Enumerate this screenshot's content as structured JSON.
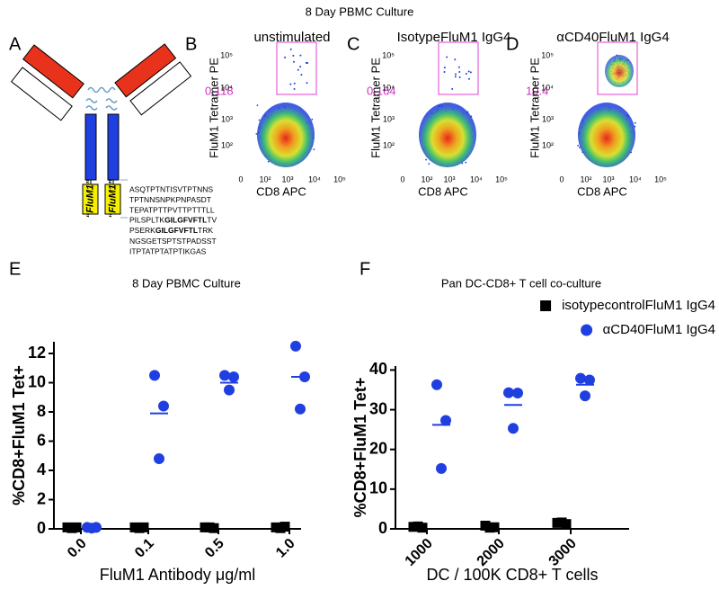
{
  "figure_title": "8 Day PBMC Culture",
  "panel_a": {
    "letter": "A",
    "epitope_labels": [
      "“FluM1”",
      "“FluM1”"
    ],
    "sequence": [
      {
        "text": "ASQTPTNTISVTPTNNS"
      },
      {
        "text": "TPTNNSNPKPNPASDT"
      },
      {
        "text": "TEPATPTTPVTTPTTTLL"
      },
      {
        "pre": "PILSPLTK",
        "bold": "GILGFVFTL",
        "post": "TV"
      },
      {
        "pre": "PSERK",
        "bold": "GILGFVFTL",
        "post": "TRK"
      },
      {
        "text": "NGSGETSPTSTPADSST"
      },
      {
        "text": "ITPTATPTATPTIKGAS"
      }
    ]
  },
  "flow_axes": {
    "x_label": "CD8 APC",
    "y_label": "FluM1 Tetramer PE",
    "x_ticks": [
      "0",
      "10²",
      "10³",
      "10⁴",
      "10⁵"
    ],
    "y_ticks": [
      "10⁵",
      "10⁴",
      "10³",
      "10²"
    ]
  },
  "flow_panels": [
    {
      "letter": "B",
      "title": "unstimulated",
      "gate": "0.118"
    },
    {
      "letter": "C",
      "title": "IsotypeFluM1 IgG4",
      "gate": "0.164"
    },
    {
      "letter": "D",
      "title": "αCD40FluM1 IgG4",
      "gate": "10.4"
    }
  ],
  "chart_data": [
    {
      "type": "dot",
      "letter": "E",
      "title": "8 Day PBMC Culture",
      "x_label": "FluM1 Antibody μg/ml",
      "y_label": "%CD8+FluM1 Tet+",
      "ylim": [
        0,
        12.8
      ],
      "yticks": [
        0,
        2,
        4,
        6,
        8,
        10,
        12
      ],
      "categories": [
        "0.0",
        "0.1",
        "0.5",
        "1.0"
      ],
      "series": [
        {
          "color": "#000000",
          "marker": "square",
          "values": [
            [
              0.1,
              0.1,
              0.05
            ],
            [
              0.1,
              0.1,
              0.05
            ],
            [
              0.1,
              0.05,
              0.1
            ],
            [
              0.1,
              0.15,
              0.05
            ]
          ],
          "means": [
            0.08,
            0.08,
            0.08,
            0.1
          ]
        },
        {
          "color": "#1f3fe0",
          "marker": "circle",
          "values": [
            [
              0.1,
              0.1,
              0.05
            ],
            [
              10.5,
              8.4,
              4.8
            ],
            [
              10.5,
              10.4,
              9.5
            ],
            [
              12.5,
              10.4,
              8.2
            ]
          ],
          "means": [
            0.08,
            7.9,
            10,
            10.4
          ]
        }
      ]
    },
    {
      "type": "dot",
      "letter": "F",
      "title": "Pan DC-CD8+ T cell co-culture",
      "x_label": "DC / 100K CD8+ T cells",
      "y_label": "%CD8+FluM1 Tet+",
      "ylim": [
        0,
        41
      ],
      "yticks": [
        0,
        10,
        20,
        30,
        40
      ],
      "categories": [
        "1000",
        "2000",
        "3000"
      ],
      "legend": "top-right",
      "series": [
        {
          "name": "isotypecontrolFluM1 IgG4",
          "color": "#000000",
          "marker": "square",
          "values": [
            [
              0.5,
              0.3,
              0.6
            ],
            [
              0.8,
              0.4,
              0.3
            ],
            [
              1.5,
              1.2,
              1.6
            ]
          ],
          "means": [
            0.5,
            0.5,
            1.4
          ]
        },
        {
          "name": "αCD40FluM1 IgG4",
          "color": "#1f3fe0",
          "marker": "circle",
          "values": [
            [
              36.3,
              27.3,
              15.2
            ],
            [
              34.3,
              34.2,
              25.3
            ],
            [
              37.9,
              37.5,
              33.5
            ]
          ],
          "means": [
            26.2,
            31.2,
            36.3
          ]
        }
      ]
    }
  ]
}
